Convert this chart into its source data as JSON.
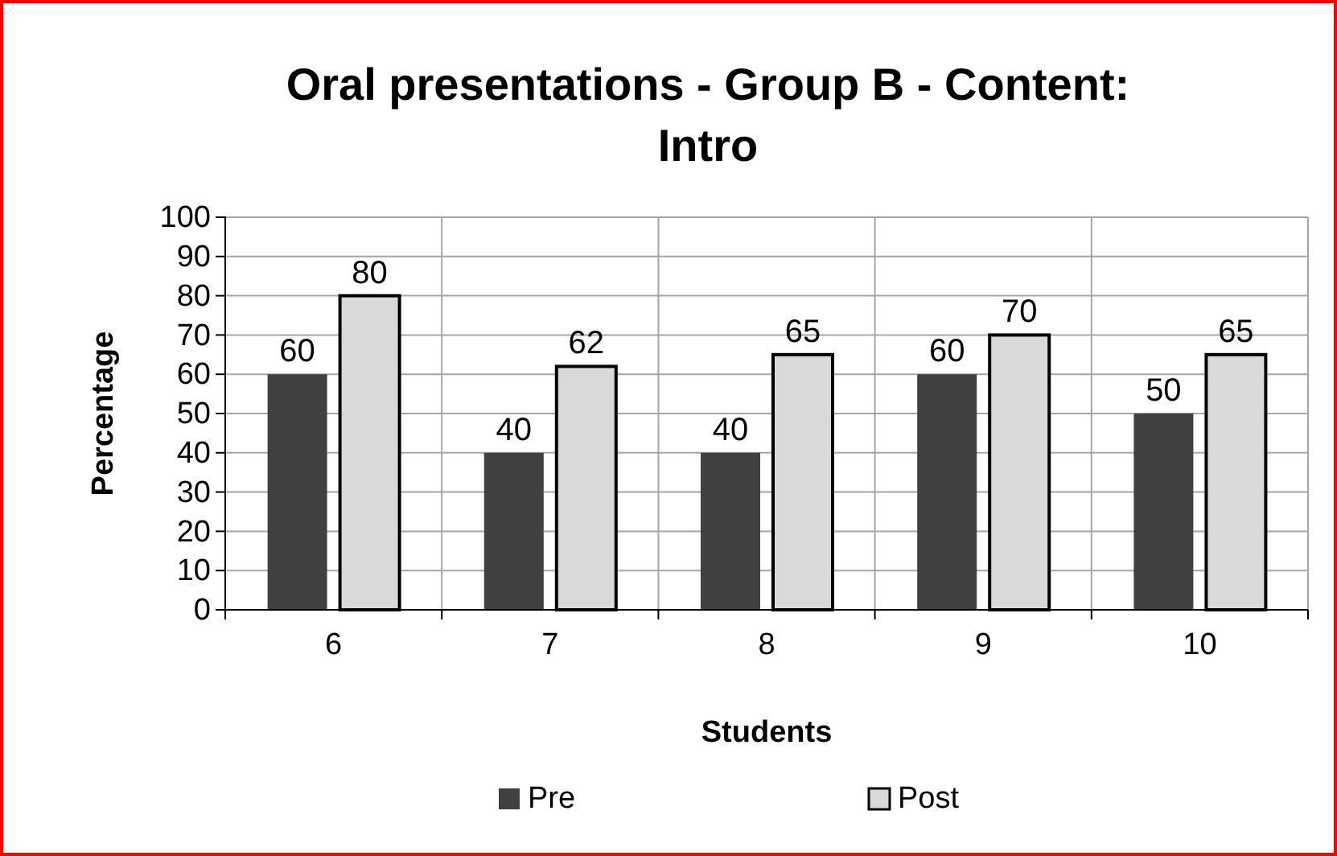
{
  "chart_data": {
    "type": "bar",
    "title": "Oral presentations - Group B - Content: Intro",
    "xlabel": "Students",
    "ylabel": "Percentage",
    "categories": [
      "6",
      "7",
      "8",
      "9",
      "10"
    ],
    "series": [
      {
        "name": "Pre",
        "color": "#404040",
        "values": [
          60,
          40,
          40,
          60,
          50
        ]
      },
      {
        "name": "Post",
        "color": "#d9d9d9",
        "values": [
          80,
          62,
          65,
          70,
          65
        ]
      }
    ],
    "ylim": [
      0,
      100
    ],
    "yticks": [
      0,
      10,
      20,
      30,
      40,
      50,
      60,
      70,
      80,
      90,
      100
    ],
    "grid": true,
    "legend": "bottom",
    "data_labels": true
  }
}
